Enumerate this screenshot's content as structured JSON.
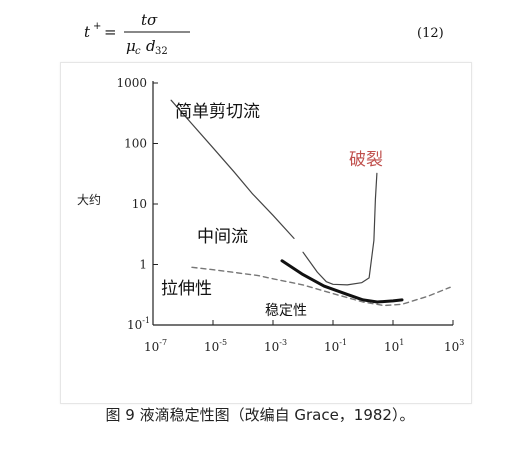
{
  "equation": {
    "lhs": "t",
    "lhs_sup": "+",
    "equals": "=",
    "numerator": "tσ",
    "denominator_mu": "μ",
    "denominator_mu_sub": "c",
    "denominator_d": "d",
    "denominator_d_sub": "32",
    "number": "(12)"
  },
  "figure": {
    "ylabel": "大约",
    "annotations": {
      "simple_shear": "简单剪切流",
      "breakup": "破裂",
      "intermediate": "中间流",
      "extensional": "拉伸性",
      "stability": "稳定性"
    }
  },
  "chart_data": {
    "type": "line",
    "x_scale": "log",
    "y_scale": "log",
    "xlim": [
      1e-07,
      1000
    ],
    "ylim": [
      0.1,
      1000
    ],
    "x_ticks": [
      {
        "base": "10",
        "exp": "-7",
        "value": 1e-07
      },
      {
        "base": "10",
        "exp": "-5",
        "value": 1e-05
      },
      {
        "base": "10",
        "exp": "-3",
        "value": 0.001
      },
      {
        "base": "10",
        "exp": "-1",
        "value": 0.1
      },
      {
        "base": "10",
        "exp": "1",
        "value": 10
      },
      {
        "base": "10",
        "exp": "3",
        "value": 1000
      }
    ],
    "y_ticks": [
      {
        "label": "1000",
        "value": 1000
      },
      {
        "label": "100",
        "value": 100
      },
      {
        "label": "10",
        "value": 10
      },
      {
        "label": "1",
        "value": 1
      },
      {
        "base": "10",
        "exp": "-1",
        "value": 0.1
      }
    ],
    "series": [
      {
        "style": "thin",
        "color": "#444444",
        "x": [
          4e-07,
          2e-06,
          1e-05,
          5e-05,
          0.0002,
          0.001,
          0.005
        ],
        "y": [
          520,
          210,
          85,
          34,
          15,
          6.5,
          2.7
        ]
      },
      {
        "style": "thin",
        "color": "#444444",
        "x": [
          0.01,
          0.03,
          0.06,
          0.1,
          0.3,
          0.9,
          1.6,
          2.3,
          2.6,
          2.9
        ],
        "y": [
          1.6,
          0.75,
          0.52,
          0.47,
          0.46,
          0.5,
          0.6,
          2.5,
          12,
          32
        ]
      },
      {
        "style": "bold",
        "color": "#111111",
        "x": [
          0.002,
          0.01,
          0.05,
          0.3,
          1,
          3,
          10,
          20
        ],
        "y": [
          1.15,
          0.68,
          0.44,
          0.32,
          0.26,
          0.24,
          0.25,
          0.26
        ]
      },
      {
        "style": "dashed",
        "color": "#777777",
        "x": [
          2e-06,
          1e-05,
          5e-05,
          0.0003,
          0.001,
          0.01,
          0.1,
          1,
          5,
          20,
          150,
          800
        ],
        "y": [
          0.9,
          0.82,
          0.74,
          0.66,
          0.58,
          0.46,
          0.33,
          0.24,
          0.21,
          0.22,
          0.3,
          0.42
        ]
      }
    ]
  },
  "caption": "图 9  液滴稳定性图（改编自 Grace，1982）。"
}
